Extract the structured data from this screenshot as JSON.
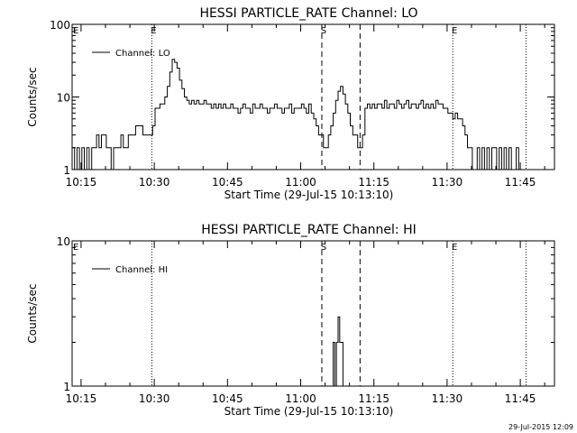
{
  "footer": {
    "timestamp": "29-Jul-2015 12:09"
  },
  "chart_data": [
    {
      "type": "line",
      "title": "HESSI PARTICLE_RATE Channel: LO",
      "xlabel": "Start Time (29-Jul-15 10:13:10)",
      "ylabel": "Counts/sec",
      "yscale": "log",
      "xlim": [
        "10:13:10",
        "11:52:00"
      ],
      "ylim": [
        1,
        100
      ],
      "x_ticks": [
        "10:15",
        "10:30",
        "10:45",
        "11:00",
        "11:15",
        "11:30",
        "11:45"
      ],
      "y_ticks": [
        {
          "value": 1,
          "label": "1"
        },
        {
          "value": 10,
          "label": "10"
        },
        {
          "value": 100,
          "label": "100"
        }
      ],
      "legend": {
        "label": "Channel: LO",
        "position": "top-left"
      },
      "markers": [
        {
          "time": "10:29:30",
          "label": "E",
          "style": "dotted"
        },
        {
          "time": "11:04:20",
          "label": "S",
          "style": "dashed"
        },
        {
          "time": "11:12:10",
          "label": "",
          "style": "dashed"
        },
        {
          "time": "11:31:10",
          "label": "E",
          "style": "dotted"
        },
        {
          "time": "11:46:10",
          "label": "",
          "style": "dotted"
        }
      ],
      "edge_labels": {
        "left": "E"
      },
      "series": [
        {
          "name": "Channel: LO",
          "points": [
            [
              "10:13:10",
              2
            ],
            [
              "10:13:40",
              1
            ],
            [
              "10:14:10",
              2
            ],
            [
              "10:14:40",
              1
            ],
            [
              "10:15:10",
              2
            ],
            [
              "10:15:40",
              1
            ],
            [
              "10:16:10",
              2
            ],
            [
              "10:16:40",
              1
            ],
            [
              "10:17:10",
              2
            ],
            [
              "10:17:40",
              2
            ],
            [
              "10:18:10",
              3
            ],
            [
              "10:18:40",
              2
            ],
            [
              "10:19:10",
              3
            ],
            [
              "10:19:40",
              3
            ],
            [
              "10:20:10",
              2
            ],
            [
              "10:20:40",
              2
            ],
            [
              "10:21:10",
              1
            ],
            [
              "10:21:40",
              2
            ],
            [
              "10:22:10",
              2
            ],
            [
              "10:22:40",
              2
            ],
            [
              "10:23:10",
              3
            ],
            [
              "10:23:40",
              2
            ],
            [
              "10:24:10",
              2
            ],
            [
              "10:24:40",
              3
            ],
            [
              "10:25:10",
              3
            ],
            [
              "10:25:40",
              3
            ],
            [
              "10:26:10",
              4
            ],
            [
              "10:26:40",
              4
            ],
            [
              "10:27:10",
              4
            ],
            [
              "10:27:40",
              3
            ],
            [
              "10:28:10",
              3
            ],
            [
              "10:28:40",
              3
            ],
            [
              "10:29:10",
              3
            ],
            [
              "10:29:40",
              4
            ],
            [
              "10:30:10",
              7
            ],
            [
              "10:30:40",
              7
            ],
            [
              "10:31:10",
              8
            ],
            [
              "10:31:40",
              8
            ],
            [
              "10:32:10",
              10
            ],
            [
              "10:32:40",
              14
            ],
            [
              "10:33:10",
              22
            ],
            [
              "10:33:40",
              33
            ],
            [
              "10:34:10",
              30
            ],
            [
              "10:34:40",
              25
            ],
            [
              "10:35:10",
              17
            ],
            [
              "10:35:40",
              13
            ],
            [
              "10:36:10",
              10
            ],
            [
              "10:36:40",
              9
            ],
            [
              "10:37:10",
              8
            ],
            [
              "10:37:40",
              9
            ],
            [
              "10:38:10",
              8
            ],
            [
              "10:38:40",
              9
            ],
            [
              "10:39:10",
              8
            ],
            [
              "10:39:40",
              8
            ],
            [
              "10:40:10",
              9
            ],
            [
              "10:40:40",
              8
            ],
            [
              "10:41:10",
              8
            ],
            [
              "10:41:40",
              7
            ],
            [
              "10:42:10",
              8
            ],
            [
              "10:42:40",
              7
            ],
            [
              "10:43:10",
              8
            ],
            [
              "10:43:40",
              7
            ],
            [
              "10:44:10",
              8
            ],
            [
              "10:44:40",
              7
            ],
            [
              "10:45:10",
              7
            ],
            [
              "10:45:40",
              8
            ],
            [
              "10:46:10",
              7
            ],
            [
              "10:46:40",
              7
            ],
            [
              "10:47:10",
              6
            ],
            [
              "10:47:40",
              7
            ],
            [
              "10:48:10",
              8
            ],
            [
              "10:48:40",
              7
            ],
            [
              "10:49:10",
              7
            ],
            [
              "10:49:40",
              6
            ],
            [
              "10:50:10",
              8
            ],
            [
              "10:50:40",
              7
            ],
            [
              "10:51:10",
              7
            ],
            [
              "10:51:40",
              8
            ],
            [
              "10:52:10",
              7
            ],
            [
              "10:52:40",
              7
            ],
            [
              "10:53:10",
              6
            ],
            [
              "10:53:40",
              7
            ],
            [
              "10:54:10",
              7
            ],
            [
              "10:54:40",
              8
            ],
            [
              "10:55:10",
              7
            ],
            [
              "10:55:40",
              7
            ],
            [
              "10:56:10",
              6
            ],
            [
              "10:56:40",
              7
            ],
            [
              "10:57:10",
              7
            ],
            [
              "10:57:40",
              8
            ],
            [
              "10:58:10",
              6
            ],
            [
              "10:58:40",
              7
            ],
            [
              "10:59:10",
              7
            ],
            [
              "10:59:40",
              7
            ],
            [
              "11:00:10",
              8
            ],
            [
              "11:00:40",
              7
            ],
            [
              "11:01:10",
              6
            ],
            [
              "11:01:40",
              8
            ],
            [
              "11:02:10",
              6
            ],
            [
              "11:02:40",
              5
            ],
            [
              "11:03:10",
              4
            ],
            [
              "11:03:40",
              3
            ],
            [
              "11:04:10",
              3
            ],
            [
              "11:04:40",
              2
            ],
            [
              "11:05:10",
              2
            ],
            [
              "11:05:40",
              3
            ],
            [
              "11:06:10",
              4
            ],
            [
              "11:06:40",
              6
            ],
            [
              "11:07:10",
              9
            ],
            [
              "11:07:40",
              12
            ],
            [
              "11:08:10",
              14
            ],
            [
              "11:08:40",
              11
            ],
            [
              "11:09:10",
              8
            ],
            [
              "11:09:40",
              6
            ],
            [
              "11:10:10",
              4
            ],
            [
              "11:10:40",
              3
            ],
            [
              "11:11:10",
              3
            ],
            [
              "11:11:40",
              2
            ],
            [
              "11:12:10",
              2
            ],
            [
              "11:12:40",
              3
            ],
            [
              "11:13:10",
              7
            ],
            [
              "11:13:40",
              8
            ],
            [
              "11:14:10",
              7
            ],
            [
              "11:14:40",
              8
            ],
            [
              "11:15:10",
              7
            ],
            [
              "11:15:40",
              8
            ],
            [
              "11:16:10",
              8
            ],
            [
              "11:16:40",
              7
            ],
            [
              "11:17:10",
              9
            ],
            [
              "11:17:40",
              7
            ],
            [
              "11:18:10",
              8
            ],
            [
              "11:18:40",
              8
            ],
            [
              "11:19:10",
              7
            ],
            [
              "11:19:40",
              9
            ],
            [
              "11:20:10",
              8
            ],
            [
              "11:20:40",
              7
            ],
            [
              "11:21:10",
              8
            ],
            [
              "11:21:40",
              9
            ],
            [
              "11:22:10",
              7
            ],
            [
              "11:22:40",
              8
            ],
            [
              "11:23:10",
              8
            ],
            [
              "11:23:40",
              7
            ],
            [
              "11:24:10",
              8
            ],
            [
              "11:24:40",
              9
            ],
            [
              "11:25:10",
              7
            ],
            [
              "11:25:40",
              8
            ],
            [
              "11:26:10",
              7
            ],
            [
              "11:26:40",
              8
            ],
            [
              "11:27:10",
              7
            ],
            [
              "11:27:40",
              9
            ],
            [
              "11:28:10",
              8
            ],
            [
              "11:28:40",
              8
            ],
            [
              "11:29:10",
              7
            ],
            [
              "11:29:40",
              7
            ],
            [
              "11:30:10",
              6
            ],
            [
              "11:30:40",
              6
            ],
            [
              "11:31:10",
              5
            ],
            [
              "11:31:40",
              6
            ],
            [
              "11:32:10",
              5
            ],
            [
              "11:32:40",
              5
            ],
            [
              "11:33:10",
              4
            ],
            [
              "11:33:40",
              3
            ],
            [
              "11:34:10",
              2
            ],
            [
              "11:34:40",
              2
            ],
            [
              "11:35:10",
              1
            ],
            [
              "11:35:40",
              1
            ],
            [
              "11:36:10",
              2
            ],
            [
              "11:36:40",
              1
            ],
            [
              "11:37:10",
              2
            ],
            [
              "11:37:40",
              1
            ],
            [
              "11:38:10",
              2
            ],
            [
              "11:38:40",
              1
            ],
            [
              "11:39:10",
              2
            ],
            [
              "11:39:40",
              2
            ],
            [
              "11:40:10",
              1
            ],
            [
              "11:40:40",
              2
            ],
            [
              "11:41:10",
              1
            ],
            [
              "11:41:40",
              2
            ],
            [
              "11:42:10",
              1
            ],
            [
              "11:42:40",
              2
            ],
            [
              "11:43:10",
              1
            ],
            [
              "11:43:40",
              1
            ],
            [
              "11:44:10",
              2
            ],
            [
              "11:44:40",
              1
            ]
          ]
        }
      ]
    },
    {
      "type": "line",
      "title": "HESSI PARTICLE_RATE Channel: HI",
      "xlabel": "Start Time (29-Jul-15 10:13:10)",
      "ylabel": "Counts/sec",
      "yscale": "log",
      "xlim": [
        "10:13:10",
        "11:52:00"
      ],
      "ylim": [
        1,
        10
      ],
      "x_ticks": [
        "10:15",
        "10:30",
        "10:45",
        "11:00",
        "11:15",
        "11:30",
        "11:45"
      ],
      "y_ticks": [
        {
          "value": 1,
          "label": "1"
        },
        {
          "value": 10,
          "label": "10"
        }
      ],
      "legend": {
        "label": "Channel: HI",
        "position": "top-left"
      },
      "markers": [
        {
          "time": "10:29:30",
          "label": "",
          "style": "dotted"
        },
        {
          "time": "11:04:20",
          "label": "S",
          "style": "dashed"
        },
        {
          "time": "11:12:10",
          "label": "",
          "style": "dashed"
        },
        {
          "time": "11:31:10",
          "label": "E",
          "style": "dotted"
        },
        {
          "time": "11:46:10",
          "label": "",
          "style": "dotted"
        }
      ],
      "edge_labels": {
        "left": "E"
      },
      "series": [
        {
          "name": "Channel: HI",
          "points": [
            [
              "11:06:20",
              1
            ],
            [
              "11:06:40",
              2
            ],
            [
              "11:07:00",
              1
            ],
            [
              "11:07:20",
              2
            ],
            [
              "11:07:40",
              3
            ],
            [
              "11:08:00",
              2
            ],
            [
              "11:08:20",
              2
            ],
            [
              "11:08:40",
              1
            ]
          ]
        }
      ]
    }
  ]
}
